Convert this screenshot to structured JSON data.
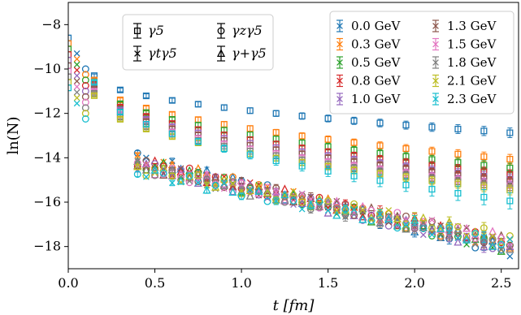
{
  "chart_data": {
    "type": "scatter",
    "xlabel": "t [fm]",
    "ylabel": "ln(N)",
    "xlim": [
      0,
      2.6
    ],
    "ylim": [
      -19,
      -7
    ],
    "xticks": [
      "0.0",
      "0.5",
      "1.0",
      "1.5",
      "2.0",
      "2.5"
    ],
    "yticks": [
      "−8",
      "−10",
      "−12",
      "−14",
      "−16",
      "−18"
    ],
    "grid": false,
    "legend_momentum_position": "top-right",
    "legend_shape_position": "top-center",
    "shape_legend": [
      {
        "name": "γ5",
        "marker": "square"
      },
      {
        "name": "γzγ5",
        "marker": "circle"
      },
      {
        "name": "γtγ5",
        "marker": "x"
      },
      {
        "name": "γ+γ5",
        "marker": "triangle"
      }
    ],
    "series": [
      {
        "name": "0.0 GeV",
        "color": "#1f77b4",
        "upper_start": -10.3,
        "upper_end": -12.9,
        "lower_start": -14.0,
        "lower_end": -18.3
      },
      {
        "name": "0.3 GeV",
        "color": "#ff7f0e",
        "upper_start": -10.5,
        "upper_end": -14.1,
        "lower_start": -14.1,
        "lower_end": -18.1
      },
      {
        "name": "0.5 GeV",
        "color": "#2ca02c",
        "upper_start": -10.6,
        "upper_end": -14.5,
        "lower_start": -14.2,
        "lower_end": -18.2
      },
      {
        "name": "0.8 GeV",
        "color": "#d62728",
        "upper_start": -10.7,
        "upper_end": -14.8,
        "lower_start": -14.2,
        "lower_end": -18.0
      },
      {
        "name": "1.0 GeV",
        "color": "#9467bd",
        "upper_start": -10.8,
        "upper_end": -15.0,
        "lower_start": -14.3,
        "lower_end": -18.2
      },
      {
        "name": "1.3 GeV",
        "color": "#8c564b",
        "upper_start": -10.9,
        "upper_end": -15.1,
        "lower_start": -14.3,
        "lower_end": -17.9
      },
      {
        "name": "1.5 GeV",
        "color": "#e377c2",
        "upper_start": -11.0,
        "upper_end": -15.3,
        "lower_start": -14.4,
        "lower_end": -17.8
      },
      {
        "name": "1.8 GeV",
        "color": "#7f7f7f",
        "upper_start": -11.1,
        "upper_end": -15.4,
        "lower_start": -14.4,
        "lower_end": -18.1
      },
      {
        "name": "2.1 GeV",
        "color": "#bcbd22",
        "upper_start": -11.2,
        "upper_end": -15.5,
        "lower_start": -14.5,
        "lower_end": -17.7
      },
      {
        "name": "2.3 GeV",
        "color": "#17becf",
        "upper_start": -10.6,
        "upper_end": -16.0,
        "lower_start": -14.6,
        "lower_end": -18.0
      }
    ]
  }
}
